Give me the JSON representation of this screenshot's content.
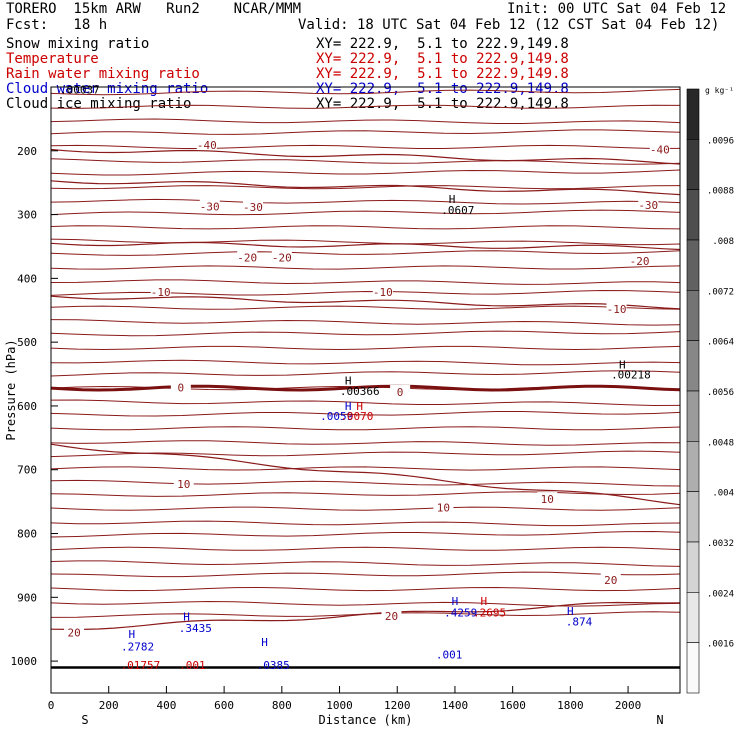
{
  "header": {
    "model": "TORERO  15km ARW   Run2    NCAR/MMM",
    "init": "Init: 00 UTC Sat 04 Feb 12",
    "fcst": "Fcst:   18 h",
    "valid": "Valid: 18 UTC Sat 04 Feb 12 (12 CST Sat 04 Feb 12)",
    "fields": [
      {
        "label": "Snow mixing ratio",
        "xy": "XY= 222.9,  5.1 to 222.9,149.8",
        "color": "#000000"
      },
      {
        "label": "Temperature",
        "xy": "XY= 222.9,  5.1 to 222.9,149.8",
        "color": "#cc0000"
      },
      {
        "label": "Rain water mixing ratio",
        "xy": "XY= 222.9,  5.1 to 222.9,149.8",
        "color": "#cc0000"
      },
      {
        "label": "Cloud water mixing ratio",
        "xy": "XY= 222.9,  5.1 to 222.9,149.8",
        "color": "#0000cc"
      },
      {
        "label": "Cloud ice mixing ratio",
        "xy": "XY= 222.9,  5.1 to 222.9,149.8",
        "color": "#000000"
      }
    ]
  },
  "chart_data": {
    "type": "contour-cross-section",
    "xlabel": "Distance (km)",
    "ylabel": "Pressure (hPa)",
    "xlim": [
      0,
      2180
    ],
    "ylim": [
      1050,
      100
    ],
    "x_ticks": [
      0,
      200,
      400,
      600,
      800,
      1000,
      1200,
      1400,
      1600,
      1800,
      2000
    ],
    "y_ticks": [
      200,
      300,
      400,
      500,
      600,
      700,
      800,
      900,
      1000
    ],
    "end_labels": {
      "left": "S",
      "right": "N"
    },
    "temperature_contours": [
      {
        "label": "-40",
        "p_left": 198,
        "p_right": 218,
        "labels_at": [
          [
            540,
            191
          ],
          [
            2110,
            198
          ]
        ]
      },
      {
        "label": "-30",
        "p_left": 247,
        "p_right": 266,
        "labels_at": [
          [
            550,
            287
          ],
          [
            700,
            288
          ],
          [
            2070,
            285
          ]
        ]
      },
      {
        "label": "-20",
        "p_left": 345,
        "p_right": 352,
        "labels_at": [
          [
            680,
            367
          ],
          [
            800,
            367
          ],
          [
            2040,
            373
          ]
        ]
      },
      {
        "label": "-10",
        "p_left": 428,
        "p_right": 445,
        "labels_at": [
          [
            380,
            421
          ],
          [
            1150,
            421
          ],
          [
            1960,
            448
          ]
        ]
      },
      {
        "label": "0",
        "p_left": 572,
        "p_right": 572,
        "labels_at": [
          [
            450,
            571
          ],
          [
            1210,
            578
          ]
        ],
        "bold": true
      },
      {
        "label": "10",
        "p_left": 660,
        "p_right": 752,
        "labels_at": [
          [
            460,
            722
          ],
          [
            1360,
            759
          ],
          [
            1720,
            746
          ]
        ]
      },
      {
        "label": "20",
        "p_left": 950,
        "p_right": 906,
        "labels_at": [
          [
            80,
            955
          ],
          [
            1180,
            929
          ],
          [
            1940,
            873
          ]
        ]
      }
    ],
    "max_labels": [
      {
        "text": "H",
        "x": 1390,
        "p": 282,
        "color": "#000000"
      },
      {
        "text": ".0607",
        "x": 1410,
        "p": 299,
        "color": "#000000"
      },
      {
        "text": "H",
        "x": 1980,
        "p": 541,
        "color": "#000000"
      },
      {
        "text": ".00218",
        "x": 2010,
        "p": 557,
        "color": "#000000"
      },
      {
        "text": "H",
        "x": 1030,
        "p": 566,
        "color": "#000000"
      },
      {
        "text": ".00366",
        "x": 1070,
        "p": 583,
        "color": "#000000"
      },
      {
        "text": "H",
        "x": 1030,
        "p": 606,
        "color": "#0000cc"
      },
      {
        "text": ".0059",
        "x": 990,
        "p": 622,
        "color": "#0000cc"
      },
      {
        "text": "H",
        "x": 1070,
        "p": 606,
        "color": "#cc0000"
      },
      {
        "text": ".0070",
        "x": 1060,
        "p": 622,
        "color": "#cc0000"
      },
      {
        "text": "H",
        "x": 1400,
        "p": 912,
        "color": "#0000cc"
      },
      {
        "text": ".4259",
        "x": 1420,
        "p": 930,
        "color": "#0000cc"
      },
      {
        "text": "H",
        "x": 1500,
        "p": 912,
        "color": "#cc0000"
      },
      {
        "text": ".2695",
        "x": 1520,
        "p": 930,
        "color": "#cc0000"
      },
      {
        "text": "H",
        "x": 1800,
        "p": 928,
        "color": "#0000cc"
      },
      {
        "text": ".874",
        "x": 1830,
        "p": 944,
        "color": "#0000cc"
      },
      {
        "text": ".001",
        "x": 1380,
        "p": 996,
        "color": "#0000cc"
      },
      {
        "text": "H",
        "x": 280,
        "p": 964,
        "color": "#0000cc"
      },
      {
        "text": ".2782",
        "x": 300,
        "p": 983,
        "color": "#0000cc"
      },
      {
        "text": ".01757",
        "x": 310,
        "p": 1012,
        "color": "#cc0000"
      },
      {
        "text": "H",
        "x": 470,
        "p": 936,
        "color": "#0000cc"
      },
      {
        "text": ".3435",
        "x": 500,
        "p": 954,
        "color": "#0000cc"
      },
      {
        "text": ".001",
        "x": 490,
        "p": 1012,
        "color": "#cc0000"
      },
      {
        "text": "H",
        "x": 740,
        "p": 976,
        "color": "#0000cc"
      },
      {
        "text": ".0385",
        "x": 770,
        "p": 1012,
        "color": "#0000cc"
      },
      {
        "text": ".00037",
        "x": 100,
        "p": 110,
        "color": "#000000"
      }
    ],
    "colorbar": {
      "unit": "g kg⁻¹",
      "labels": [
        ".0096",
        ".0088",
        ".008",
        ".0072",
        ".0064",
        ".0056",
        ".0048",
        ".004",
        ".0032",
        ".0024",
        ".0016"
      ]
    }
  }
}
